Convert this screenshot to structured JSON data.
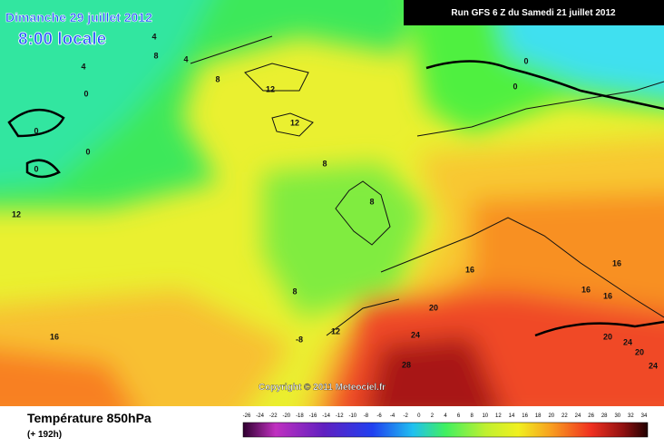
{
  "header": {
    "date": "Dimanche 29 juillet 2012",
    "time": "8:00 locale",
    "run": "Run GFS 6 Z du Samedi 21 juillet 2012"
  },
  "map": {
    "copyright": "Copyright © 2011 Meteociel.fr",
    "contour_labels": [
      "4",
      "4",
      "4",
      "8",
      "8",
      "0",
      "0",
      "0",
      "0",
      "12",
      "12",
      "8",
      "8",
      "12",
      "8",
      "-8",
      "12",
      "16",
      "16",
      "16",
      "16",
      "20",
      "24",
      "28",
      "16",
      "0",
      "0",
      "20",
      "20",
      "24",
      "24"
    ]
  },
  "legend": {
    "title": "Température 850hPa",
    "lead": "(+ 192h)",
    "scale": [
      -26,
      -24,
      -22,
      -20,
      -18,
      -16,
      -14,
      -12,
      -10,
      -8,
      -6,
      -4,
      -2,
      0,
      2,
      4,
      6,
      8,
      10,
      12,
      14,
      16,
      18,
      20,
      22,
      24,
      26,
      28,
      30,
      32,
      34
    ]
  }
}
